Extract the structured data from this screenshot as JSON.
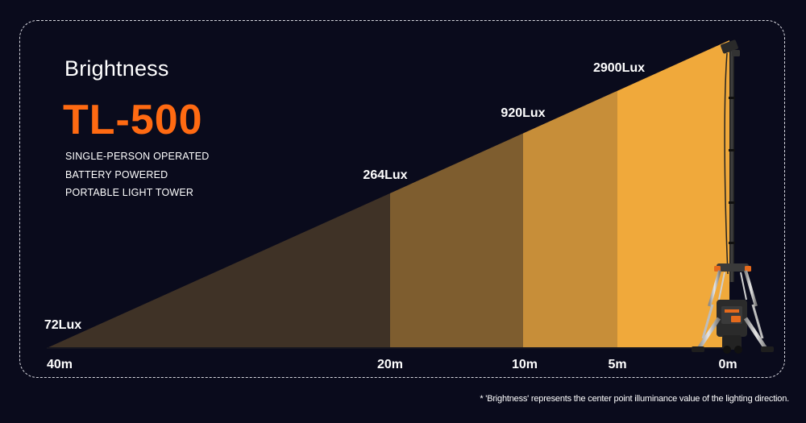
{
  "header": {
    "title": "Brightness",
    "model": "TL-500",
    "lines": [
      "SINGLE-PERSON OPERATED",
      "BATTERY POWERED",
      "PORTABLE LIGHT TOWER"
    ]
  },
  "footnote": "* 'Brightness' represents the center point illuminance value of the lighting direction.",
  "colors": {
    "background": "#0a0b1c",
    "accent": "#ff6a12",
    "zone_0_5": "#f0a93b",
    "zone_5_10": "#c78e39",
    "zone_10_20": "#7e5d2f",
    "zone_20_40": "#3f3226"
  },
  "icons": [
    "light-tower-icon"
  ],
  "chart_data": {
    "type": "area",
    "x_unit": "m",
    "x_reversed": true,
    "distance_ticks": [
      {
        "value": 40,
        "label": "40m"
      },
      {
        "value": 20,
        "label": "20m"
      },
      {
        "value": 10,
        "label": "10m"
      },
      {
        "value": 5,
        "label": "5m"
      },
      {
        "value": 0,
        "label": "0m"
      }
    ],
    "illuminance": [
      {
        "distance": 40,
        "label": "72Lux"
      },
      {
        "distance": 20,
        "label": "264Lux"
      },
      {
        "distance": 10,
        "label": "920Lux"
      },
      {
        "distance": 0,
        "label": "2900Lux"
      }
    ],
    "zones": [
      {
        "from": 40,
        "to": 20
      },
      {
        "from": 20,
        "to": 10
      },
      {
        "from": 10,
        "to": 5
      },
      {
        "from": 5,
        "to": 0
      }
    ]
  }
}
